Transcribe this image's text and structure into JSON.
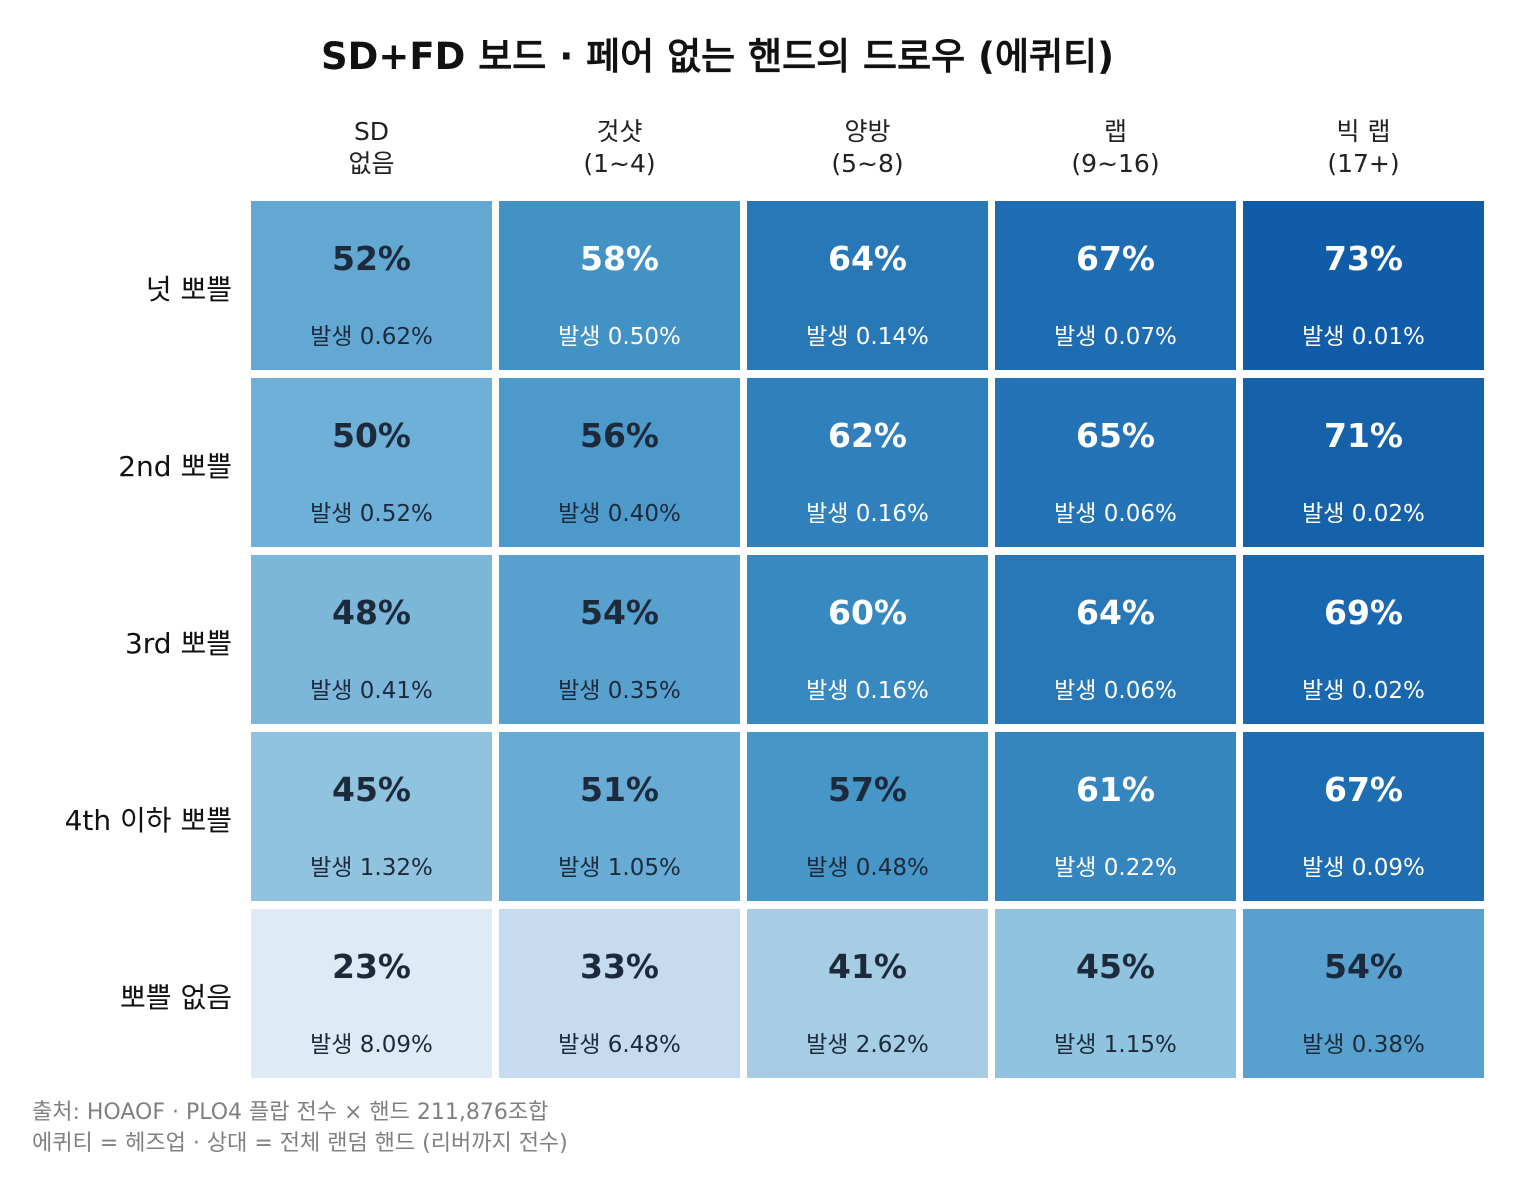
{
  "title": "SD+FD 보드 · 페어 없는 핸드의 드로우 (에퀴티)",
  "chart_data": {
    "type": "heatmap",
    "title": "SD+FD 보드 · 페어 없는 핸드의 드로우 (에퀴티)",
    "columns": [
      {
        "line1": "SD",
        "line2": "없음"
      },
      {
        "line1": "것샷",
        "line2": "(1~4)"
      },
      {
        "line1": "양방",
        "line2": "(5~8)"
      },
      {
        "line1": "랩",
        "line2": "(9~16)"
      },
      {
        "line1": "빅 랩",
        "line2": "(17+)"
      }
    ],
    "rows": [
      "넛 뽀쁠",
      "2nd 뽀쁠",
      "3rd 뽀쁠",
      "4th 이하 뽀쁠",
      "뽀쁠 없음"
    ],
    "occurrence_prefix": "발생",
    "equity": [
      [
        52,
        58,
        64,
        67,
        73
      ],
      [
        50,
        56,
        62,
        65,
        71
      ],
      [
        48,
        54,
        60,
        64,
        69
      ],
      [
        45,
        51,
        57,
        61,
        67
      ],
      [
        23,
        33,
        41,
        45,
        54
      ]
    ],
    "occurrence": [
      [
        0.62,
        0.5,
        0.14,
        0.07,
        0.01
      ],
      [
        0.52,
        0.4,
        0.16,
        0.06,
        0.02
      ],
      [
        0.41,
        0.35,
        0.16,
        0.06,
        0.02
      ],
      [
        1.32,
        1.05,
        0.48,
        0.22,
        0.09
      ],
      [
        8.09,
        6.48,
        2.62,
        1.15,
        0.38
      ]
    ],
    "colormap": "Blues",
    "color_range": [
      23,
      73
    ]
  },
  "footer": {
    "source": "출처: HOAOF · PLO4 플랍 전수 × 핸드 211,876조합",
    "note": "에퀴티 = 헤즈업 · 상대 = 전체 랜덤 핸드 (리버까지 전수)"
  }
}
